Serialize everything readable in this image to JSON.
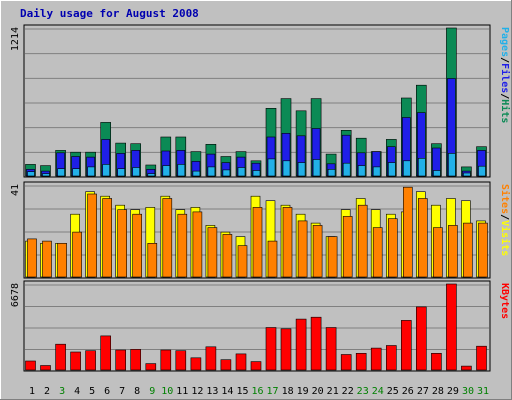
{
  "chart_data": {
    "type": "bar",
    "title": "Daily usage for August 2008",
    "days": [
      "1",
      "2",
      "3",
      "4",
      "5",
      "6",
      "7",
      "8",
      "9",
      "10",
      "11",
      "12",
      "13",
      "14",
      "15",
      "16",
      "17",
      "18",
      "19",
      "20",
      "21",
      "22",
      "23",
      "24",
      "25",
      "26",
      "27",
      "28",
      "29",
      "30",
      "31"
    ],
    "weekend_days": [
      "3",
      "9",
      "10",
      "16",
      "17",
      "23",
      "24",
      "30",
      "31"
    ],
    "panels": [
      {
        "id": "hits",
        "ymax_label": "1214",
        "ymax": 1214,
        "legend": [
          "Pages",
          "/",
          "Files",
          "/",
          "Hits"
        ],
        "series": [
          {
            "name": "Hits",
            "color": "#0b8a55",
            "values": [
              95,
              85,
              210,
              195,
              195,
              440,
              270,
              265,
              90,
              320,
              320,
              200,
              260,
              160,
              200,
              125,
              555,
              635,
              535,
              635,
              180,
              375,
              310,
              200,
              300,
              640,
              745,
              265,
              1214,
              75,
              240
            ]
          },
          {
            "name": "Files",
            "color": "#1f1fe8",
            "values": [
              55,
              40,
              190,
              160,
              155,
              300,
              185,
              210,
              55,
              205,
              210,
              120,
              180,
              110,
              155,
              105,
              320,
              350,
              330,
              390,
              100,
              335,
              190,
              200,
              240,
              480,
              520,
              230,
              800,
              40,
              210
            ]
          },
          {
            "name": "Pages",
            "color": "#22b0e8",
            "values": [
              35,
              20,
              60,
              60,
              75,
              95,
              60,
              70,
              20,
              85,
              95,
              40,
              75,
              50,
              70,
              45,
              140,
              125,
              110,
              135,
              55,
              105,
              85,
              75,
              110,
              125,
              145,
              45,
              185,
              25,
              80
            ]
          }
        ]
      },
      {
        "id": "visits",
        "ymax_label": "41",
        "ymax": 41,
        "legend": [
          "Sites",
          "/",
          "Visits"
        ],
        "series": [
          {
            "name": "Visits",
            "color": "#ffff00",
            "values": [
              16,
              15,
              15,
              28,
              38,
              36,
              32,
              30,
              31,
              36,
              30,
              31,
              23,
              20,
              18,
              36,
              34,
              32,
              28,
              24,
              18,
              30,
              35,
              30,
              28,
              29,
              38,
              32,
              35,
              34,
              25
            ]
          },
          {
            "name": "Sites",
            "color": "#ff8000",
            "values": [
              17,
              16,
              15,
              20,
              37,
              35,
              30,
              28,
              15,
              35,
              28,
              29,
              22,
              19,
              14,
              31,
              16,
              31,
              25,
              23,
              18,
              27,
              32,
              22,
              26,
              40,
              35,
              22,
              23,
              24,
              24
            ]
          }
        ]
      },
      {
        "id": "kbytes",
        "ymax_label": "6678",
        "ymax": 6678,
        "legend": [
          "KBytes"
        ],
        "series": [
          {
            "name": "KBytes",
            "color": "#ff0000",
            "values": [
              700,
              350,
              2000,
              1400,
              1500,
              2650,
              1550,
              1600,
              500,
              1550,
              1500,
              950,
              1800,
              800,
              1250,
              650,
              3300,
              3200,
              3950,
              4100,
              3300,
              1200,
              1300,
              1700,
              1900,
              3850,
              4900,
              1300,
              6678,
              300,
              1850
            ]
          }
        ]
      }
    ]
  }
}
